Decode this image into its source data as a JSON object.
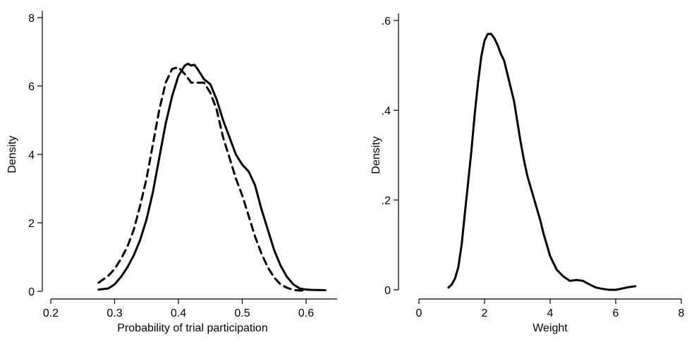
{
  "chart_data": [
    {
      "type": "line",
      "xlabel": "Probability of trial participation",
      "ylabel": "Density",
      "xlim": [
        0.2,
        0.6
      ],
      "ylim": [
        0,
        8
      ],
      "xticks": [
        0.2,
        0.3,
        0.4,
        0.5,
        0.6
      ],
      "xtick_labels": [
        "0.2",
        "0.3",
        "0.4",
        "0.5",
        "0.6"
      ],
      "yticks": [
        0,
        2,
        4,
        6,
        8
      ],
      "ytick_labels": [
        "0",
        "2",
        "4",
        "6",
        "8"
      ],
      "grid": false,
      "legend": "none",
      "series": [
        {
          "style": "solid",
          "color": "#000000",
          "x": [
            0.275,
            0.29,
            0.3,
            0.31,
            0.32,
            0.33,
            0.34,
            0.35,
            0.36,
            0.37,
            0.38,
            0.39,
            0.4,
            0.41,
            0.415,
            0.42,
            0.425,
            0.43,
            0.44,
            0.45,
            0.46,
            0.47,
            0.48,
            0.49,
            0.5,
            0.51,
            0.52,
            0.53,
            0.54,
            0.55,
            0.56,
            0.57,
            0.58,
            0.59,
            0.6,
            0.61,
            0.63
          ],
          "y": [
            0.05,
            0.08,
            0.2,
            0.42,
            0.7,
            1.05,
            1.5,
            2.1,
            2.9,
            3.9,
            4.9,
            5.7,
            6.3,
            6.6,
            6.65,
            6.6,
            6.62,
            6.5,
            6.2,
            6.05,
            5.6,
            5.0,
            4.5,
            4.0,
            3.7,
            3.5,
            3.1,
            2.4,
            1.8,
            1.2,
            0.75,
            0.42,
            0.2,
            0.08,
            0.05,
            0.04,
            0.03
          ]
        },
        {
          "style": "dashed",
          "color": "#000000",
          "x": [
            0.275,
            0.29,
            0.3,
            0.31,
            0.32,
            0.33,
            0.34,
            0.35,
            0.36,
            0.37,
            0.38,
            0.39,
            0.4,
            0.41,
            0.42,
            0.43,
            0.44,
            0.45,
            0.46,
            0.47,
            0.48,
            0.49,
            0.5,
            0.51,
            0.52,
            0.53,
            0.54,
            0.55,
            0.56,
            0.57,
            0.58,
            0.59,
            0.6
          ],
          "y": [
            0.25,
            0.45,
            0.65,
            0.95,
            1.3,
            1.8,
            2.5,
            3.3,
            4.3,
            5.3,
            6.1,
            6.5,
            6.55,
            6.35,
            6.1,
            6.1,
            6.1,
            5.8,
            5.3,
            4.5,
            3.9,
            3.3,
            2.8,
            2.2,
            1.6,
            1.1,
            0.7,
            0.4,
            0.2,
            0.1,
            0.04,
            0.02,
            0.02
          ]
        }
      ]
    },
    {
      "type": "line",
      "xlabel": "Weight",
      "ylabel": "Density",
      "xlim": [
        0,
        8
      ],
      "ylim": [
        0,
        0.6
      ],
      "xticks": [
        0,
        2,
        4,
        6,
        8
      ],
      "xtick_labels": [
        "0",
        "2",
        "4",
        "6",
        "8"
      ],
      "yticks": [
        0,
        0.2,
        0.4,
        0.6
      ],
      "ytick_labels": [
        "0",
        ".2",
        ".4",
        ".6"
      ],
      "grid": false,
      "legend": "none",
      "series": [
        {
          "style": "solid",
          "color": "#000000",
          "x": [
            0.9,
            1.0,
            1.1,
            1.2,
            1.3,
            1.4,
            1.5,
            1.6,
            1.7,
            1.8,
            1.9,
            2.0,
            2.1,
            2.2,
            2.3,
            2.4,
            2.5,
            2.6,
            2.7,
            2.8,
            2.9,
            3.0,
            3.1,
            3.2,
            3.3,
            3.4,
            3.5,
            3.6,
            3.7,
            3.8,
            3.9,
            4.0,
            4.2,
            4.4,
            4.6,
            4.8,
            5.0,
            5.2,
            5.4,
            5.6,
            5.8,
            6.0,
            6.2,
            6.4,
            6.6
          ],
          "y": [
            0.005,
            0.012,
            0.025,
            0.05,
            0.1,
            0.17,
            0.24,
            0.31,
            0.39,
            0.46,
            0.52,
            0.555,
            0.57,
            0.57,
            0.56,
            0.545,
            0.525,
            0.51,
            0.48,
            0.45,
            0.42,
            0.375,
            0.33,
            0.29,
            0.255,
            0.23,
            0.205,
            0.18,
            0.155,
            0.125,
            0.1,
            0.075,
            0.045,
            0.03,
            0.02,
            0.022,
            0.02,
            0.012,
            0.005,
            0.002,
            0.0,
            0.0,
            0.003,
            0.006,
            0.008
          ]
        }
      ]
    }
  ]
}
